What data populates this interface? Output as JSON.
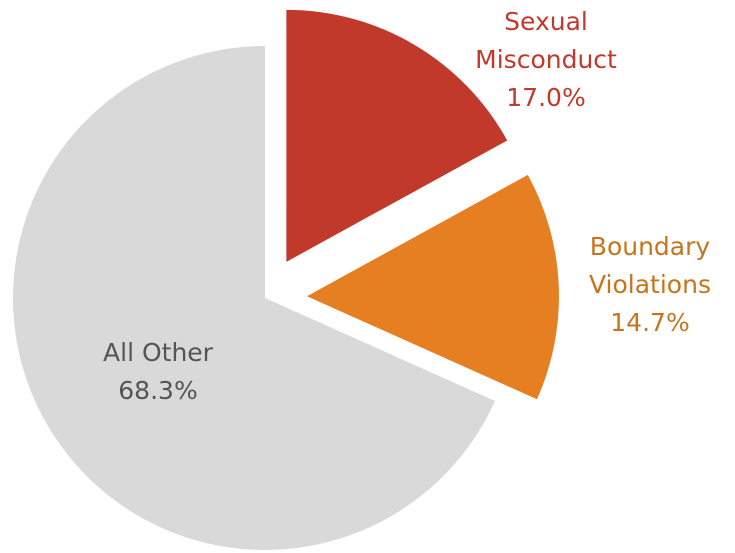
{
  "chart_data": {
    "type": "pie",
    "categories": [
      "Sexual Misconduct",
      "Boundary Violations",
      "All Other"
    ],
    "values": [
      17.0,
      14.7,
      68.3
    ],
    "value_labels": [
      "17.0%",
      "14.7%",
      "68.3%"
    ],
    "colors": [
      "#c0392b",
      "#e67e22",
      "#d9d9d9"
    ],
    "label_colors": [
      "#c0392b",
      "#c8741a",
      "#555555"
    ],
    "explode": [
      true,
      true,
      false
    ]
  }
}
